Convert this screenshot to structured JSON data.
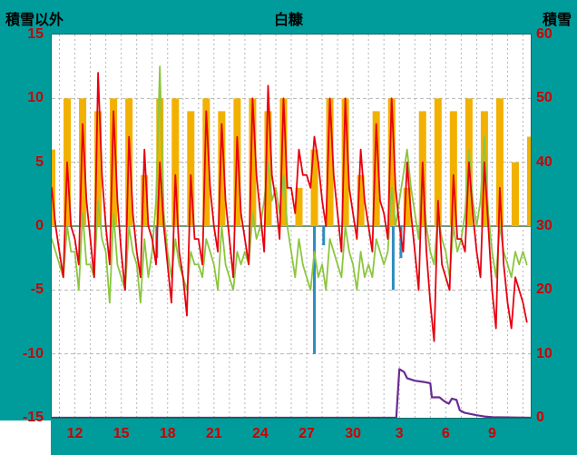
{
  "header": {
    "left_axis_title": "積雪以外",
    "station_title": "白糠",
    "right_axis_title": "積雪"
  },
  "chart_data": {
    "type": "line",
    "title": "白糠",
    "x_axis": {
      "min": 10.5,
      "max": 41.5,
      "tick_positions": [
        12,
        15,
        18,
        21,
        24,
        27,
        30,
        33,
        36,
        39
      ],
      "tick_labels": [
        "12",
        "15",
        "18",
        "21",
        "24",
        "27",
        "30",
        "3",
        "6",
        "9"
      ]
    },
    "left_axis": {
      "label": "積雪以外",
      "min": -15,
      "max": 15,
      "ticks": [
        15,
        10,
        5,
        0,
        -5,
        -10,
        -15
      ]
    },
    "right_axis": {
      "label": "積雪",
      "min": 0,
      "max": 60,
      "ticks": [
        60,
        50,
        40,
        30,
        20,
        10,
        0
      ]
    },
    "colors": {
      "background": "#009c9c",
      "plot_background": "#ffffff",
      "grid": "#b5b5b5",
      "zero_line": "#789878",
      "tick_text": "#cc0000",
      "title_text": "#000000",
      "yellow_bars": "#f2b100",
      "blue_bars": "#2e8bc0",
      "green_line": "#8cc63e",
      "red_line": "#e8000d",
      "purple_line": "#6a2c91"
    },
    "series": [
      {
        "name": "yellow_bars",
        "type": "bar",
        "axis": "left",
        "color": "#f2b100",
        "points": [
          [
            10,
            6
          ],
          [
            11,
            10
          ],
          [
            12,
            10
          ],
          [
            13,
            9
          ],
          [
            14,
            10
          ],
          [
            15,
            10
          ],
          [
            16,
            4
          ],
          [
            17,
            10
          ],
          [
            18,
            10
          ],
          [
            19,
            9
          ],
          [
            20,
            10
          ],
          [
            21,
            9
          ],
          [
            22,
            10
          ],
          [
            23,
            10
          ],
          [
            24,
            9
          ],
          [
            25,
            10
          ],
          [
            26,
            3
          ],
          [
            27,
            6
          ],
          [
            28,
            10
          ],
          [
            29,
            10
          ],
          [
            30,
            4
          ],
          [
            31,
            9
          ],
          [
            32,
            10
          ],
          [
            33,
            3
          ],
          [
            34,
            9
          ],
          [
            35,
            10
          ],
          [
            36,
            9
          ],
          [
            37,
            10
          ],
          [
            38,
            9
          ],
          [
            39,
            10
          ],
          [
            40,
            5
          ],
          [
            41,
            7
          ]
        ]
      },
      {
        "name": "blue_bars",
        "type": "down-bar",
        "axis": "left",
        "color": "#2e8bc0",
        "points": [
          [
            17.3,
            2.5
          ],
          [
            27.5,
            10
          ],
          [
            28.1,
            1.5
          ],
          [
            32.6,
            5
          ],
          [
            33.1,
            2.5
          ]
        ]
      },
      {
        "name": "green_line",
        "type": "line",
        "axis": "left",
        "color": "#8cc63e",
        "x0": 10.5,
        "dx": 0.25,
        "values": [
          -1,
          -2,
          -3,
          -4,
          0,
          -2,
          -2,
          -5,
          1,
          -3,
          -3,
          -4,
          2,
          -1,
          -2,
          -6,
          1,
          -3,
          -4,
          -5,
          0,
          -2,
          -3,
          -6,
          -1,
          -4,
          -2,
          2,
          12.5,
          1,
          -2,
          -4,
          -1,
          -3,
          -4,
          -5,
          -2,
          -3,
          -3,
          -4,
          -1,
          -2,
          -3,
          -5,
          0,
          -3,
          -4,
          -5,
          -2,
          -3,
          -2,
          -3,
          1,
          -1,
          0,
          2,
          5,
          2,
          3,
          1,
          4,
          0,
          -2,
          -4,
          -1,
          -3,
          -4,
          -5,
          -2,
          -4,
          -3,
          -5,
          -1,
          -2,
          -3,
          -4,
          0,
          -2,
          -3,
          -5,
          -2,
          -4,
          -3,
          -4,
          -1,
          -2,
          -3,
          -2,
          3,
          0,
          2,
          4,
          6,
          3,
          1,
          -1,
          4,
          0,
          -2,
          -3,
          1,
          -1,
          -2,
          -4,
          0,
          -2,
          -1,
          1,
          6,
          2,
          0,
          2,
          7,
          1,
          -2,
          -4,
          0,
          -2,
          -3,
          -4,
          -2,
          -3,
          -2,
          -3
        ]
      },
      {
        "name": "red_line",
        "type": "line",
        "axis": "left",
        "color": "#e8000d",
        "x0": 10.5,
        "dx": 0.25,
        "values": [
          3,
          0,
          -2,
          -4,
          5,
          0,
          -1,
          -3,
          8,
          2,
          -1,
          -4,
          12,
          4,
          0,
          -3,
          9,
          2,
          -2,
          -5,
          7,
          1,
          -2,
          -4,
          6,
          0,
          -1,
          -3,
          5,
          0,
          -3,
          -6,
          4,
          -2,
          -4,
          -7,
          4,
          -1,
          -1,
          -3,
          9,
          3,
          0,
          -2,
          8,
          2,
          -1,
          -4,
          7,
          1,
          -1,
          -3,
          10,
          4,
          1,
          -2,
          11,
          4,
          2,
          -1,
          10,
          3,
          3,
          1,
          6,
          4,
          4,
          3,
          7,
          5,
          2,
          0,
          10,
          4,
          1,
          -2,
          10,
          3,
          1,
          -1,
          6,
          2,
          0,
          -2,
          8,
          2,
          1,
          -1,
          10,
          3,
          0,
          -2,
          5,
          1,
          -2,
          -5,
          5,
          -2,
          -6,
          -9,
          2,
          -3,
          -4,
          -5,
          4,
          -1,
          -1,
          -2,
          5,
          1,
          -2,
          -4,
          5,
          0,
          -5,
          -8,
          3,
          -3,
          -6,
          -8,
          -4,
          -5,
          -6,
          -7.5
        ]
      },
      {
        "name": "snow_depth_purple_line",
        "type": "line",
        "axis": "right",
        "color": "#6a2c91",
        "points": [
          [
            10.5,
            0
          ],
          [
            32.8,
            0
          ],
          [
            33.0,
            7.6
          ],
          [
            33.3,
            7.2
          ],
          [
            33.5,
            6.2
          ],
          [
            34.0,
            5.8
          ],
          [
            34.6,
            5.6
          ],
          [
            35.0,
            5.4
          ],
          [
            35.1,
            3.2
          ],
          [
            35.6,
            3.2
          ],
          [
            35.9,
            2.6
          ],
          [
            36.2,
            2.2
          ],
          [
            36.4,
            3.0
          ],
          [
            36.7,
            2.8
          ],
          [
            36.9,
            1.2
          ],
          [
            37.2,
            0.8
          ],
          [
            37.6,
            0.6
          ],
          [
            38.0,
            0.4
          ],
          [
            38.5,
            0.2
          ],
          [
            39.0,
            0.1
          ],
          [
            41.5,
            0
          ]
        ]
      }
    ]
  }
}
